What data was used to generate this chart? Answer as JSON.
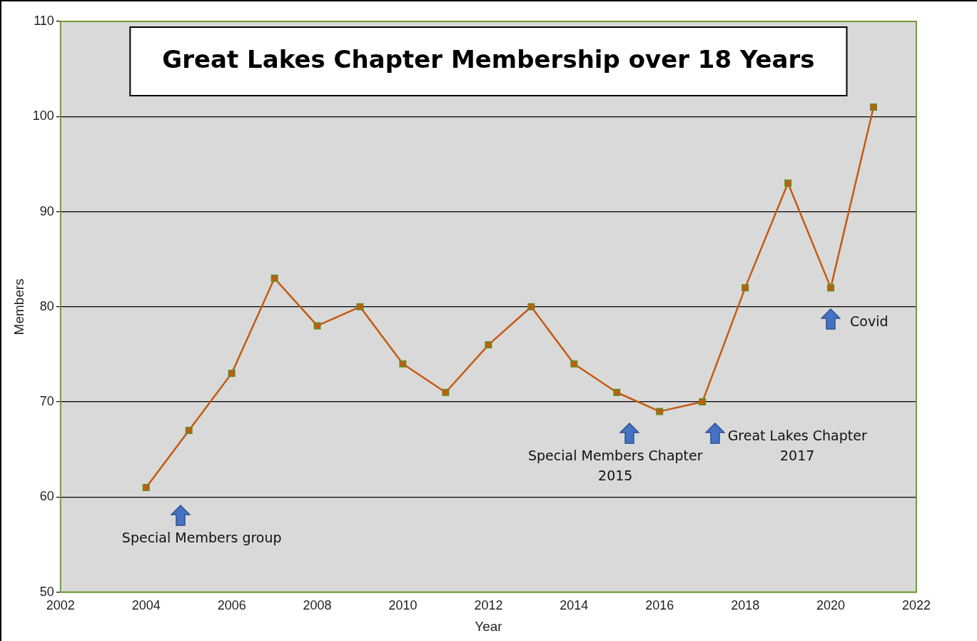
{
  "chart_data": {
    "type": "line",
    "title": "Great Lakes Chapter Membership over 18 Years",
    "xlabel": "Year",
    "ylabel": "Members",
    "x": [
      2004,
      2005,
      2006,
      2007,
      2008,
      2009,
      2010,
      2011,
      2012,
      2013,
      2014,
      2015,
      2016,
      2017,
      2018,
      2019,
      2020,
      2021
    ],
    "series": [
      {
        "color": "#c55a11",
        "values": [
          61,
          67,
          73,
          83,
          78,
          80,
          74,
          71,
          76,
          80,
          74,
          71,
          69,
          70,
          82,
          93,
          82,
          101
        ]
      }
    ],
    "xlim": [
      2002,
      2022
    ],
    "xticks": [
      2002,
      2004,
      2006,
      2008,
      2010,
      2012,
      2014,
      2016,
      2018,
      2020,
      2022
    ],
    "ylim": [
      50,
      110
    ],
    "yticks": [
      50,
      60,
      70,
      80,
      90,
      100,
      110
    ],
    "grid": "y",
    "legend": false,
    "marker": "square",
    "line_style": "solid",
    "annotations": [
      "Special Members group",
      "Special Members Chapter\n2015",
      "Great Lakes Chapter\n2017",
      "Covid"
    ]
  }
}
